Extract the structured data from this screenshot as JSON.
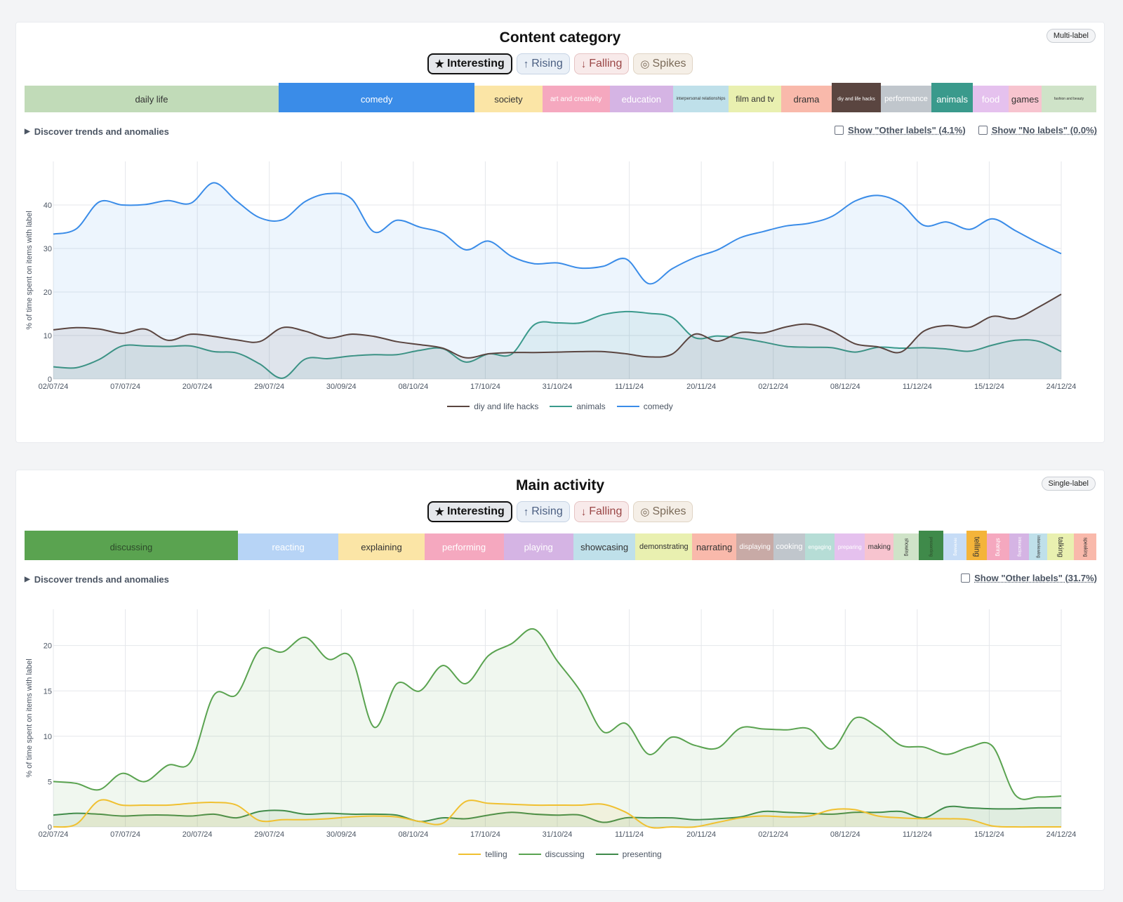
{
  "modes": {
    "interesting": "Interesting",
    "rising": "Rising",
    "falling": "Falling",
    "spikes": "Spikes"
  },
  "discover_label": "Discover trends and anomalies",
  "x_ticks": [
    "02/07/24",
    "07/07/24",
    "20/07/24",
    "29/07/24",
    "30/09/24",
    "08/10/24",
    "17/10/24",
    "31/10/24",
    "11/11/24",
    "20/11/24",
    "02/12/24",
    "08/12/24",
    "11/12/24",
    "15/12/24",
    "24/12/24"
  ],
  "panels": [
    {
      "title": "Content category",
      "badge": "Multi-label",
      "checks": [
        "Show \"Other labels\" (4.1%)",
        "Show \"No labels\" (0.0%)"
      ],
      "labels": [
        {
          "name": "daily life",
          "color": "#c1dbb8",
          "text": "#333333",
          "fs": 13,
          "start": 0,
          "end": 23.7
        },
        {
          "name": "comedy",
          "color": "#3a8ce8",
          "text": "#ffffff",
          "fs": 13,
          "start": 23.7,
          "end": 42.0,
          "selected": true,
          "selcolor": "#3a8ce8"
        },
        {
          "name": "society",
          "color": "#fbe5a6",
          "text": "#333333",
          "fs": 13,
          "start": 42.0,
          "end": 48.3
        },
        {
          "name": "art  and  creativity",
          "color": "#f5a8bf",
          "text": "#ffffff",
          "fs": 10,
          "start": 48.3,
          "end": 54.6
        },
        {
          "name": "education",
          "color": "#d5b4e4",
          "text": "#ffffff",
          "fs": 13,
          "start": 54.6,
          "end": 60.5
        },
        {
          "name": "interpersonal relationships",
          "color": "#bfe0ea",
          "text": "#333333",
          "fs": 6,
          "start": 60.5,
          "end": 65.7
        },
        {
          "name": "film  and  tv",
          "color": "#e9f0b0",
          "text": "#333333",
          "fs": 12,
          "start": 65.7,
          "end": 70.6
        },
        {
          "name": "drama",
          "color": "#f9b9ab",
          "text": "#333333",
          "fs": 13,
          "start": 70.6,
          "end": 75.3
        },
        {
          "name": "diy  and  life hacks",
          "color": "#5a4540",
          "text": "#ffffff",
          "fs": 7,
          "start": 75.3,
          "end": 79.9,
          "selected": true,
          "selcolor": "#5a4540"
        },
        {
          "name": "performance",
          "color": "#c0c6cc",
          "text": "#ffffff",
          "fs": 11,
          "start": 79.9,
          "end": 84.6
        },
        {
          "name": "animals",
          "color": "#3a9a8c",
          "text": "#ffffff",
          "fs": 13,
          "start": 84.6,
          "end": 88.5,
          "selected": true,
          "selcolor": "#3a9a8c"
        },
        {
          "name": "food",
          "color": "#e5c1ee",
          "text": "#ffffff",
          "fs": 13,
          "start": 88.5,
          "end": 91.8
        },
        {
          "name": "games",
          "color": "#f7c4cf",
          "text": "#333333",
          "fs": 13,
          "start": 91.8,
          "end": 94.9
        },
        {
          "name": "fashion and beauty",
          "color": "#cfe3c8",
          "text": "#333333",
          "fs": 5,
          "start": 94.9,
          "end": 100
        }
      ],
      "chart_data": {
        "type": "area",
        "ylabel": "% of time spent on items with label",
        "ylim": [
          0,
          50
        ],
        "yticks": [
          0,
          10,
          20,
          30,
          40
        ],
        "series": [
          {
            "name": "diy  and  life hacks",
            "color": "#5a4540",
            "values": [
              11.3,
              11.8,
              11.5,
              10.5,
              11.5,
              8.9,
              10.3,
              9.8,
              9.0,
              8.6,
              11.8,
              11.0,
              9.4,
              10.3,
              9.8,
              8.6,
              7.9,
              7.1,
              4.9,
              5.8,
              6.1,
              6.1,
              6.2,
              6.3,
              6.3,
              5.8,
              5.1,
              5.7,
              10.3,
              8.7,
              10.7,
              10.6,
              12.0,
              12.6,
              11.0,
              8.1,
              7.4,
              6.2,
              11.0,
              12.3,
              11.9,
              14.4,
              13.9,
              16.5,
              19.5
            ]
          },
          {
            "name": "animals",
            "color": "#3a9a8c",
            "values": [
              2.8,
              2.6,
              4.5,
              7.6,
              7.6,
              7.5,
              7.6,
              6.3,
              6.0,
              3.5,
              0.2,
              4.6,
              4.7,
              5.3,
              5.6,
              5.6,
              6.6,
              7.0,
              3.9,
              5.8,
              5.7,
              12.5,
              12.9,
              12.9,
              14.8,
              15.5,
              15.1,
              14.2,
              9.5,
              9.9,
              9.4,
              8.5,
              7.5,
              7.3,
              7.2,
              6.2,
              7.3,
              7.1,
              7.2,
              6.9,
              6.4,
              7.8,
              8.9,
              8.7,
              6.3
            ]
          },
          {
            "name": "comedy",
            "color": "#3a8ce8",
            "values": [
              33.3,
              34.5,
              40.7,
              40.0,
              40.1,
              41.0,
              40.4,
              45.1,
              40.9,
              37.1,
              36.6,
              40.8,
              42.6,
              41.5,
              33.8,
              36.5,
              34.9,
              33.5,
              29.7,
              31.7,
              28.2,
              26.5,
              26.7,
              25.5,
              25.9,
              27.6,
              21.9,
              25.3,
              27.9,
              29.7,
              32.5,
              33.9,
              35.2,
              35.8,
              37.4,
              40.9,
              42.2,
              40.3,
              35.3,
              36.1,
              34.4,
              36.8,
              34.1,
              31.3,
              28.8
            ]
          }
        ]
      }
    },
    {
      "title": "Main activity",
      "badge": "Single-label",
      "checks": [
        "Show \"Other labels\" (31.7%)"
      ],
      "labels": [
        {
          "name": "discussing",
          "color": "#5aa350",
          "text": "#2d4a2a",
          "fs": 13,
          "start": 0,
          "end": 19.9,
          "selected": true,
          "selcolor": "#5aa350"
        },
        {
          "name": "reacting",
          "color": "#b7d4f6",
          "text": "#ffffff",
          "fs": 13,
          "start": 19.9,
          "end": 29.3
        },
        {
          "name": "explaining",
          "color": "#fbe5a6",
          "text": "#333333",
          "fs": 13,
          "start": 29.3,
          "end": 37.3
        },
        {
          "name": "performing",
          "color": "#f5a8bf",
          "text": "#ffffff",
          "fs": 13,
          "start": 37.3,
          "end": 44.7
        },
        {
          "name": "playing",
          "color": "#d5b4e4",
          "text": "#ffffff",
          "fs": 13,
          "start": 44.7,
          "end": 51.2
        },
        {
          "name": "showcasing",
          "color": "#bfe0ea",
          "text": "#333333",
          "fs": 13,
          "start": 51.2,
          "end": 57.0
        },
        {
          "name": "demonstrating",
          "color": "#e9f0b0",
          "text": "#333333",
          "fs": 11,
          "start": 57.0,
          "end": 62.3
        },
        {
          "name": "narrating",
          "color": "#f9b9ab",
          "text": "#333333",
          "fs": 13,
          "start": 62.3,
          "end": 66.4
        },
        {
          "name": "displaying",
          "color": "#c8aaa6",
          "text": "#ffffff",
          "fs": 10,
          "start": 66.4,
          "end": 69.9
        },
        {
          "name": "cooking",
          "color": "#c0c6cc",
          "text": "#ffffff",
          "fs": 11,
          "start": 69.9,
          "end": 72.8
        },
        {
          "name": "engaging",
          "color": "#b6ddd6",
          "text": "#ffffff",
          "fs": 8,
          "start": 72.8,
          "end": 75.6
        },
        {
          "name": "preparing",
          "color": "#e5c1ee",
          "text": "#ffffff",
          "fs": 8,
          "start": 75.6,
          "end": 78.4
        },
        {
          "name": "making",
          "color": "#f7c4cf",
          "text": "#333333",
          "fs": 10,
          "start": 78.4,
          "end": 81.1
        },
        {
          "name": "showing",
          "color": "#cfe3c8",
          "text": "#333333",
          "fs": 7,
          "start": 81.1,
          "end": 83.4,
          "vertical": true
        },
        {
          "name": "presenting",
          "color": "#3f8a4a",
          "text": "#2d4a2a",
          "fs": 6,
          "start": 83.4,
          "end": 85.7,
          "vertical": true,
          "selected": true,
          "selcolor": "#3f8a4a"
        },
        {
          "name": "reviewing",
          "color": "#c6dcf6",
          "text": "#ffffff",
          "fs": 6,
          "start": 85.7,
          "end": 87.9,
          "vertical": true
        },
        {
          "name": "telling",
          "color": "#f4b43a",
          "text": "#333333",
          "fs": 11,
          "start": 87.9,
          "end": 89.8,
          "vertical": true,
          "selected": true,
          "selcolor": "#f4b43a"
        },
        {
          "name": "sharing",
          "color": "#f5a8bf",
          "text": "#ffffff",
          "fs": 8,
          "start": 89.8,
          "end": 91.9,
          "vertical": true
        },
        {
          "name": "interacting",
          "color": "#d5b4e4",
          "text": "#ffffff",
          "fs": 6,
          "start": 91.9,
          "end": 93.7,
          "vertical": true
        },
        {
          "name": "interviewing",
          "color": "#bfe0ea",
          "text": "#333333",
          "fs": 6,
          "start": 93.7,
          "end": 95.4,
          "vertical": true
        },
        {
          "name": "talking",
          "color": "#e9f0b0",
          "text": "#333333",
          "fs": 10,
          "start": 95.4,
          "end": 97.9,
          "vertical": true
        },
        {
          "name": "speaking",
          "color": "#f9b9ab",
          "text": "#333333",
          "fs": 7,
          "start": 97.9,
          "end": 100,
          "vertical": true
        }
      ],
      "chart_data": {
        "type": "area",
        "ylabel": "% of time spent on items with label",
        "ylim": [
          0,
          24
        ],
        "yticks": [
          0,
          5,
          10,
          15,
          20
        ],
        "series": [
          {
            "name": "telling",
            "color": "#f0c030",
            "values": [
              0,
              0.3,
              2.9,
              2.4,
              2.4,
              2.4,
              2.6,
              2.7,
              2.4,
              0.7,
              0.8,
              0.8,
              0.9,
              1.1,
              1.2,
              1.1,
              0.6,
              0.4,
              2.8,
              2.6,
              2.5,
              2.4,
              2.4,
              2.4,
              2.5,
              1.6,
              0,
              0,
              0,
              0.5,
              1.0,
              1.2,
              1.1,
              1.2,
              1.9,
              1.9,
              1.2,
              1.0,
              0.9,
              0.9,
              0.8,
              0.1,
              0,
              0,
              0
            ]
          },
          {
            "name": "discussing",
            "color": "#5aa350",
            "values": [
              5.0,
              4.8,
              4.1,
              5.9,
              5.0,
              6.8,
              7.2,
              14.5,
              14.6,
              19.5,
              19.3,
              20.9,
              18.5,
              18.7,
              11.0,
              15.8,
              15.0,
              17.8,
              15.8,
              18.9,
              20.2,
              21.8,
              18.3,
              15.0,
              10.5,
              11.4,
              8.0,
              9.9,
              9.0,
              8.7,
              10.9,
              10.8,
              10.7,
              10.8,
              8.6,
              12.0,
              11.0,
              9.0,
              8.8,
              8.0,
              8.8,
              8.9,
              3.5,
              3.3,
              3.4
            ]
          },
          {
            "name": "presenting",
            "color": "#3f8a4a",
            "values": [
              1.3,
              1.5,
              1.4,
              1.2,
              1.3,
              1.3,
              1.2,
              1.4,
              1.0,
              1.7,
              1.8,
              1.4,
              1.5,
              1.4,
              1.4,
              1.3,
              0.6,
              1.0,
              0.9,
              1.3,
              1.6,
              1.4,
              1.3,
              1.3,
              0.5,
              1.0,
              1.0,
              1.0,
              0.8,
              0.9,
              1.1,
              1.7,
              1.6,
              1.5,
              1.4,
              1.6,
              1.6,
              1.7,
              1.0,
              2.2,
              2.1,
              2.0,
              2.0,
              2.1,
              2.1
            ]
          }
        ]
      }
    }
  ]
}
